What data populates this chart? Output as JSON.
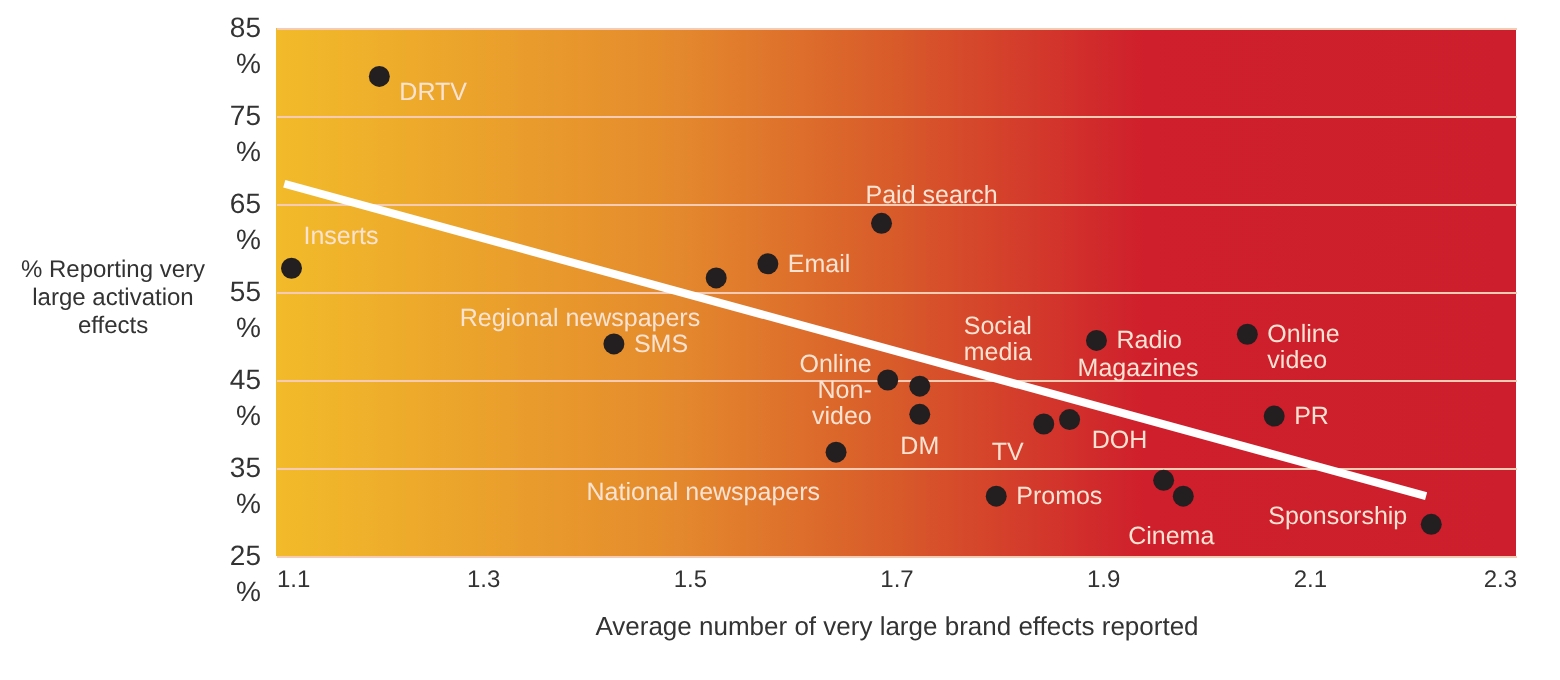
{
  "chart_data": {
    "type": "scatter",
    "xlabel": "Average number of very large brand effects reported",
    "ylabel": "% Reporting very large activation effects",
    "xlim": [
      1.1,
      2.3
    ],
    "xticks": [
      1.1,
      1.3,
      1.5,
      1.7,
      1.9,
      2.1,
      2.3
    ],
    "ylim": [
      25,
      85
    ],
    "yticks": [
      {
        "value": 25,
        "label": "25\n%"
      },
      {
        "value": 35,
        "label": "35\n%"
      },
      {
        "value": 45,
        "label": "45\n%"
      },
      {
        "value": 55,
        "label": "55\n%"
      },
      {
        "value": 65,
        "label": "65\n%"
      },
      {
        "value": 75,
        "label": "75\n%"
      },
      {
        "value": 85,
        "label": "85\n%"
      }
    ],
    "grid": "y",
    "marker": "circle",
    "series": [
      {
        "color": "#231f20",
        "x": [
          1.2,
          1.115,
          1.427,
          1.526,
          1.576,
          1.686,
          1.692,
          1.723,
          1.723,
          1.642,
          1.843,
          1.868,
          1.797,
          1.894,
          2.04,
          2.066,
          1.959,
          1.978,
          2.218
        ],
        "values": [
          79.5,
          57.7,
          49.1,
          56.6,
          58.2,
          62.8,
          45,
          44.3,
          41.1,
          36.8,
          40,
          40.5,
          31.8,
          49.5,
          50.2,
          40.9,
          33.6,
          31.8,
          28.6
        ]
      },
      {
        "type": "line",
        "color": "#ffffff",
        "marker": "none",
        "x": [
          1.108,
          2.213
        ],
        "values": [
          67.3,
          31.8
        ]
      }
    ],
    "annotations": [
      {
        "text": "DRTV",
        "x": 1.2,
        "y": 79.5
      },
      {
        "text": "Inserts",
        "x": 1.115,
        "y": 57.7
      },
      {
        "text": "SMS",
        "x": 1.427,
        "y": 49.1
      },
      {
        "text": "Regional newspapers",
        "x": 1.526,
        "y": 56.6
      },
      {
        "text": "Email",
        "x": 1.576,
        "y": 58.2
      },
      {
        "text": "Paid search",
        "x": 1.686,
        "y": 62.8
      },
      {
        "text": "Online\nNon-\nvideo",
        "x": 1.692,
        "y": 45
      },
      {
        "text": "Social\nmedia",
        "x": 1.723,
        "y": 44.3
      },
      {
        "text": "DM",
        "x": 1.723,
        "y": 41.1
      },
      {
        "text": "National newspapers",
        "x": 1.642,
        "y": 36.8
      },
      {
        "text": "TV",
        "x": 1.843,
        "y": 40
      },
      {
        "text": "Magazines",
        "x": 1.868,
        "y": 40.5
      },
      {
        "text": "Promos",
        "x": 1.797,
        "y": 31.8
      },
      {
        "text": "Radio",
        "x": 1.894,
        "y": 49.5
      },
      {
        "text": "Online\nvideo",
        "x": 2.04,
        "y": 50.2
      },
      {
        "text": "PR",
        "x": 2.066,
        "y": 40.9
      },
      {
        "text": "DOH",
        "x": 1.959,
        "y": 33.6
      },
      {
        "text": "Cinema",
        "x": 1.978,
        "y": 31.8
      },
      {
        "text": "Sponsorship",
        "x": 2.218,
        "y": 28.6
      }
    ]
  }
}
